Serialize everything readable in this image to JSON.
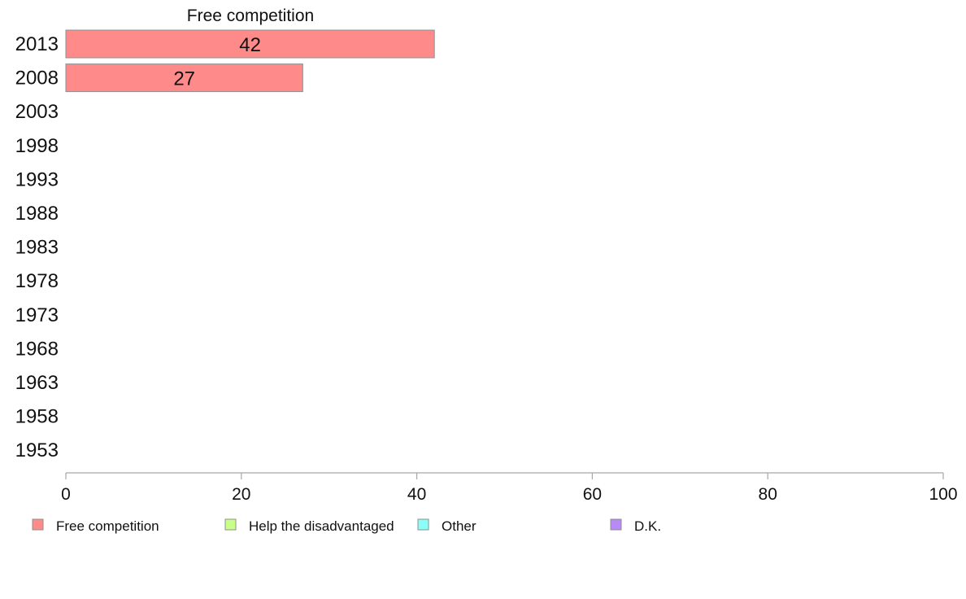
{
  "chart_data": {
    "type": "bar",
    "orientation": "horizontal",
    "stacked": true,
    "title": "",
    "xlabel": "",
    "ylabel": "",
    "panel_label": "Free competition",
    "categories": [
      "2013",
      "2008",
      "2003",
      "1998",
      "1993",
      "1988",
      "1983",
      "1978",
      "1973",
      "1968",
      "1963",
      "1958",
      "1953"
    ],
    "series": [
      {
        "name": "Free competition",
        "color": "#ff8a8a",
        "values": [
          42,
          27,
          null,
          null,
          null,
          null,
          null,
          null,
          null,
          null,
          null,
          null,
          null
        ]
      },
      {
        "name": "Help the disadvantaged",
        "color": "#c8ff8a",
        "values": [
          null,
          null,
          null,
          null,
          null,
          null,
          null,
          null,
          null,
          null,
          null,
          null,
          null
        ]
      },
      {
        "name": "Other",
        "color": "#8afffa",
        "values": [
          null,
          null,
          null,
          null,
          null,
          null,
          null,
          null,
          null,
          null,
          null,
          null,
          null
        ]
      },
      {
        "name": "D.K.",
        "color": "#b88af5",
        "values": [
          null,
          null,
          null,
          null,
          null,
          null,
          null,
          null,
          null,
          null,
          null,
          null,
          null
        ]
      }
    ],
    "data_labels": [
      "42",
      "27"
    ],
    "xlim": [
      0,
      100
    ],
    "xticks": [
      "0",
      "20",
      "40",
      "60",
      "80",
      "100"
    ],
    "grid": false,
    "legend_position": "bottom-left"
  }
}
